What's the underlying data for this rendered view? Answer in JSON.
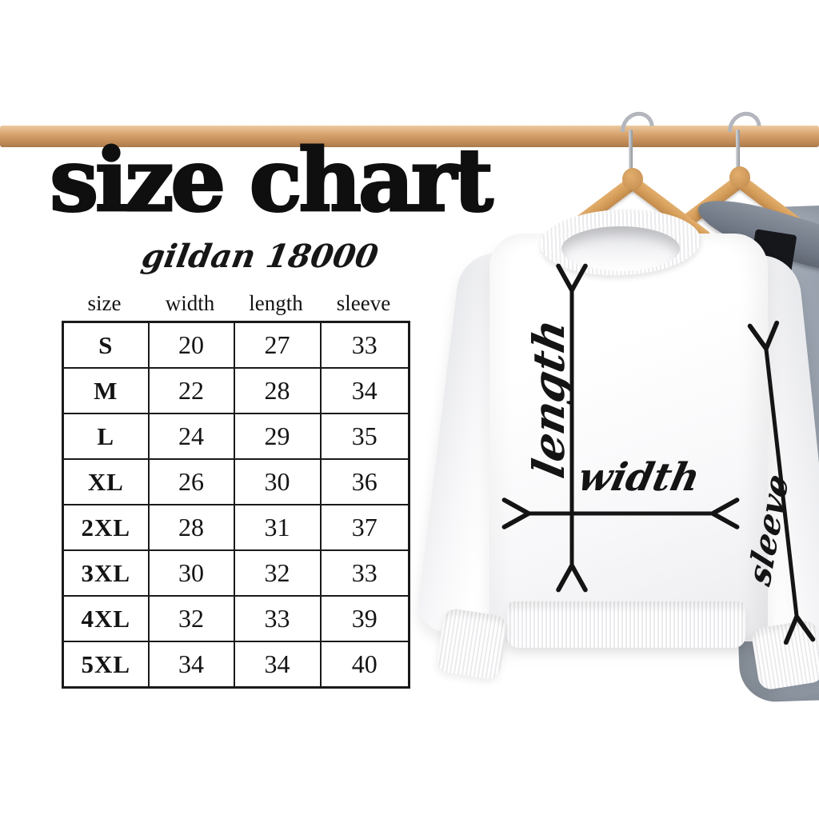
{
  "page": {
    "background": "#ffffff"
  },
  "header": {
    "title": "size chart",
    "subtitle": "gildan 18000"
  },
  "size_table": {
    "columns": [
      "size",
      "width",
      "length",
      "sleeve"
    ],
    "rows": [
      [
        "S",
        "20",
        "27",
        "33"
      ],
      [
        "M",
        "22",
        "28",
        "34"
      ],
      [
        "L",
        "24",
        "29",
        "35"
      ],
      [
        "XL",
        "26",
        "30",
        "36"
      ],
      [
        "2XL",
        "28",
        "31",
        "37"
      ],
      [
        "3XL",
        "30",
        "32",
        "33"
      ],
      [
        "4XL",
        "32",
        "33",
        "39"
      ],
      [
        "5XL",
        "34",
        "34",
        "40"
      ]
    ]
  },
  "mockup": {
    "measure_labels": {
      "length": "length",
      "width": "width",
      "sleeve": "sleeve"
    },
    "garments": [
      {
        "name": "white crewneck sweatshirt on wooden hanger",
        "color": "#ffffff"
      },
      {
        "name": "gray crewneck sweatshirt on wooden hanger",
        "color": "#9aa3af"
      }
    ]
  },
  "colors": {
    "ink": "#141414",
    "table_border": "#1a1a1a",
    "wood_light": "#eccaa0",
    "wood": "#d7a26d",
    "wood_dark": "#a97a4b",
    "hanger_light": "#e2ad6c",
    "hanger_dark": "#c08a4e",
    "hook_silver": "#b3b7bd",
    "gray_garment": "#9aa3af",
    "gray_garment_dark": "#8d95a1",
    "tag_black": "#16171b",
    "rib_shade": "#ebebee"
  }
}
